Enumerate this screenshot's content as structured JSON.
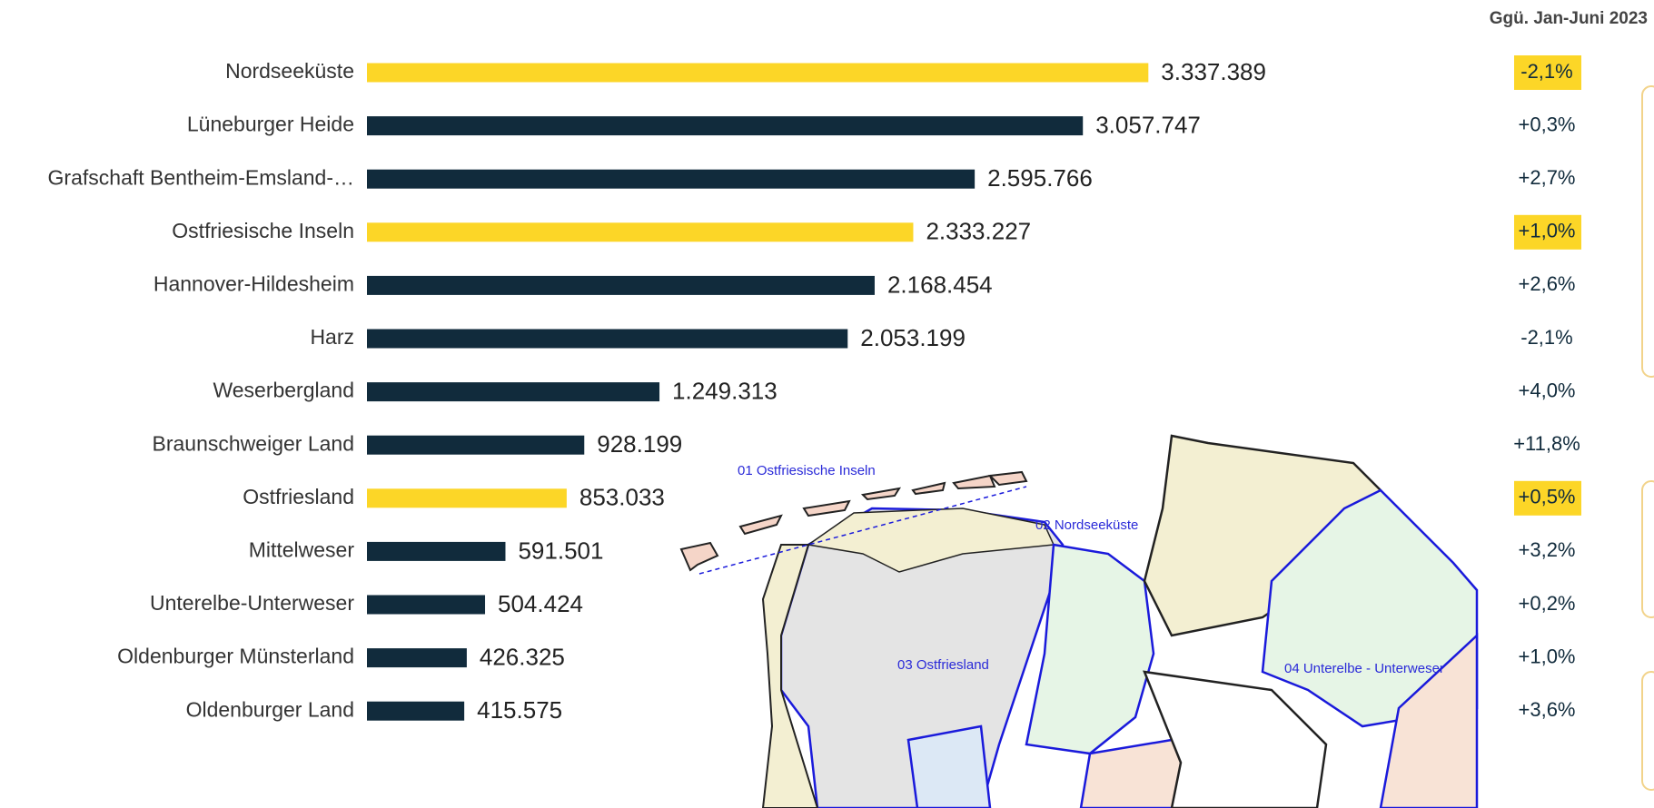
{
  "chart_data": {
    "type": "bar",
    "orientation": "horizontal",
    "change_header": "Ggü. Jan-Juni 2023",
    "categories": [
      "Nordseeküste",
      "Lüneburger Heide",
      "Grafschaft Bentheim-Emsland-…",
      "Ostfriesische Inseln",
      "Hannover-Hildesheim",
      "Harz",
      "Weserbergland",
      "Braunschweiger Land",
      "Ostfriesland",
      "Mittelweser",
      "Unterelbe-Unterweser",
      "Oldenburger Münsterland",
      "Oldenburger Land"
    ],
    "values": [
      3337389,
      3057747,
      2595766,
      2333227,
      2168454,
      2053199,
      1249313,
      928199,
      853033,
      591501,
      504424,
      426325,
      415575
    ],
    "value_labels": [
      "3.337.389",
      "3.057.747",
      "2.595.766",
      "2.333.227",
      "2.168.454",
      "2.053.199",
      "1.249.313",
      "928.199",
      "853.033",
      "591.501",
      "504.424",
      "426.325",
      "415.575"
    ],
    "colors": [
      "#fcd627",
      "#112b3c",
      "#112b3c",
      "#fcd627",
      "#112b3c",
      "#112b3c",
      "#112b3c",
      "#112b3c",
      "#fcd627",
      "#112b3c",
      "#112b3c",
      "#112b3c",
      "#112b3c"
    ],
    "highlight_color": "#fcd627",
    "changes": [
      {
        "value": -2.1,
        "label": "-2,1%"
      },
      {
        "value": 0.3,
        "label": "+0,3%"
      },
      {
        "value": 2.7,
        "label": "+2,7%"
      },
      {
        "value": 1.0,
        "label": "+1,0%"
      },
      {
        "value": 2.6,
        "label": "+2,6%"
      },
      {
        "value": -2.1,
        "label": "-2,1%"
      },
      {
        "value": 4.0,
        "label": "+4,0%"
      },
      {
        "value": 11.8,
        "label": "+11,8%"
      },
      {
        "value": 0.5,
        "label": "+0,5%"
      },
      {
        "value": 3.2,
        "label": "+3,2%"
      },
      {
        "value": 0.2,
        "label": "+0,2%"
      },
      {
        "value": 1.0,
        "label": "+1,0%"
      },
      {
        "value": 3.6,
        "label": "+3,6%"
      }
    ],
    "xlim": [
      0,
      4500000
    ]
  },
  "map": {
    "labels": [
      "01 Ostfriesische Inseln",
      "02 Nordseeküste",
      "03 Ostfriesland",
      "04 Unterelbe - Unterweser"
    ]
  }
}
